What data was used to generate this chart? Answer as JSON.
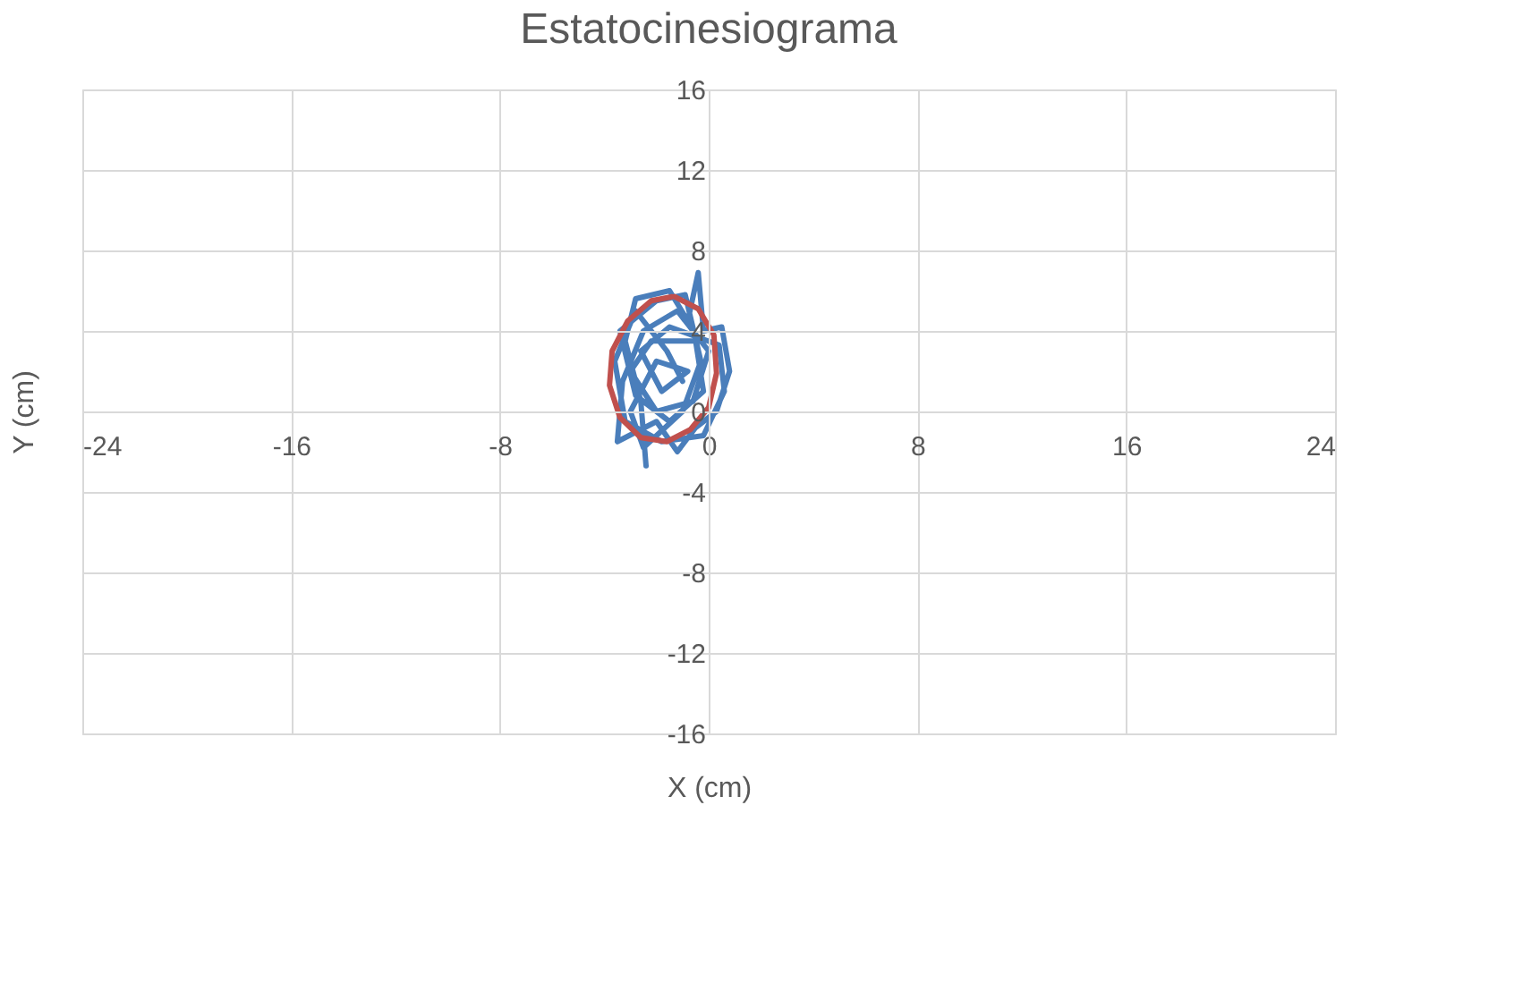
{
  "chart_data": {
    "type": "line",
    "title": "Estatocinesiograma",
    "xlabel": "X  (cm)",
    "ylabel": "Y (cm)",
    "xlim": [
      -24,
      24
    ],
    "xticks": [
      -24,
      -16,
      -8,
      0,
      8,
      16,
      24
    ],
    "ylim": [
      -16,
      16
    ],
    "yticks": [
      -16,
      -12,
      -8,
      -4,
      0,
      4,
      8,
      12,
      16
    ],
    "grid": true,
    "legend": false,
    "marker": "none",
    "line_style": "solid",
    "series": [
      {
        "color": "#4a7ebb",
        "x": [
          -2.4,
          -2.6,
          -3.2,
          -2.8,
          -1.5,
          -0.8,
          -0.4,
          -0.2,
          0.5,
          0.8,
          0.3,
          -0.5,
          -1.2,
          -2.0,
          -3.5,
          -3.3,
          -2.5,
          -1.2,
          0.0,
          -0.6,
          -2.0,
          -3.0,
          -2.2,
          -0.5,
          -0.2,
          -1.5,
          -2.8,
          -3.4,
          -2.0,
          -0.9,
          -0.3,
          -1.0,
          -2.5,
          -3.0,
          -2.0,
          -0.8,
          -1.8,
          -2.6,
          -1.5,
          0.4,
          0.6,
          -0.2,
          -1.8,
          -3.2,
          -3.6,
          -2.8,
          -1.6,
          -1.0
        ],
        "values": [
          -2.7,
          0.5,
          3.5,
          5.6,
          6.0,
          4.5,
          6.9,
          4.0,
          4.2,
          2.0,
          0.0,
          -0.8,
          -2.0,
          -0.5,
          -1.5,
          1.5,
          4.0,
          5.0,
          3.0,
          0.5,
          0.0,
          2.0,
          3.5,
          3.5,
          1.0,
          -0.5,
          0.8,
          4.0,
          5.5,
          5.8,
          2.5,
          0.0,
          -1.8,
          0.0,
          2.5,
          2.0,
          1.0,
          3.0,
          4.2,
          3.3,
          1.0,
          -1.2,
          -1.5,
          -0.5,
          2.5,
          5.0,
          3.0,
          1.5
        ]
      },
      {
        "color": "#c0504d",
        "x": [
          -1.3,
          -0.4,
          0.2,
          0.3,
          0.0,
          -0.7,
          -1.6,
          -2.6,
          -3.4,
          -3.8,
          -3.7,
          -3.1,
          -2.2,
          -1.4
        ],
        "values": [
          5.7,
          5.1,
          3.8,
          1.9,
          0.2,
          -0.9,
          -1.5,
          -1.3,
          -0.3,
          1.3,
          3.0,
          4.5,
          5.5,
          5.7
        ]
      }
    ]
  }
}
